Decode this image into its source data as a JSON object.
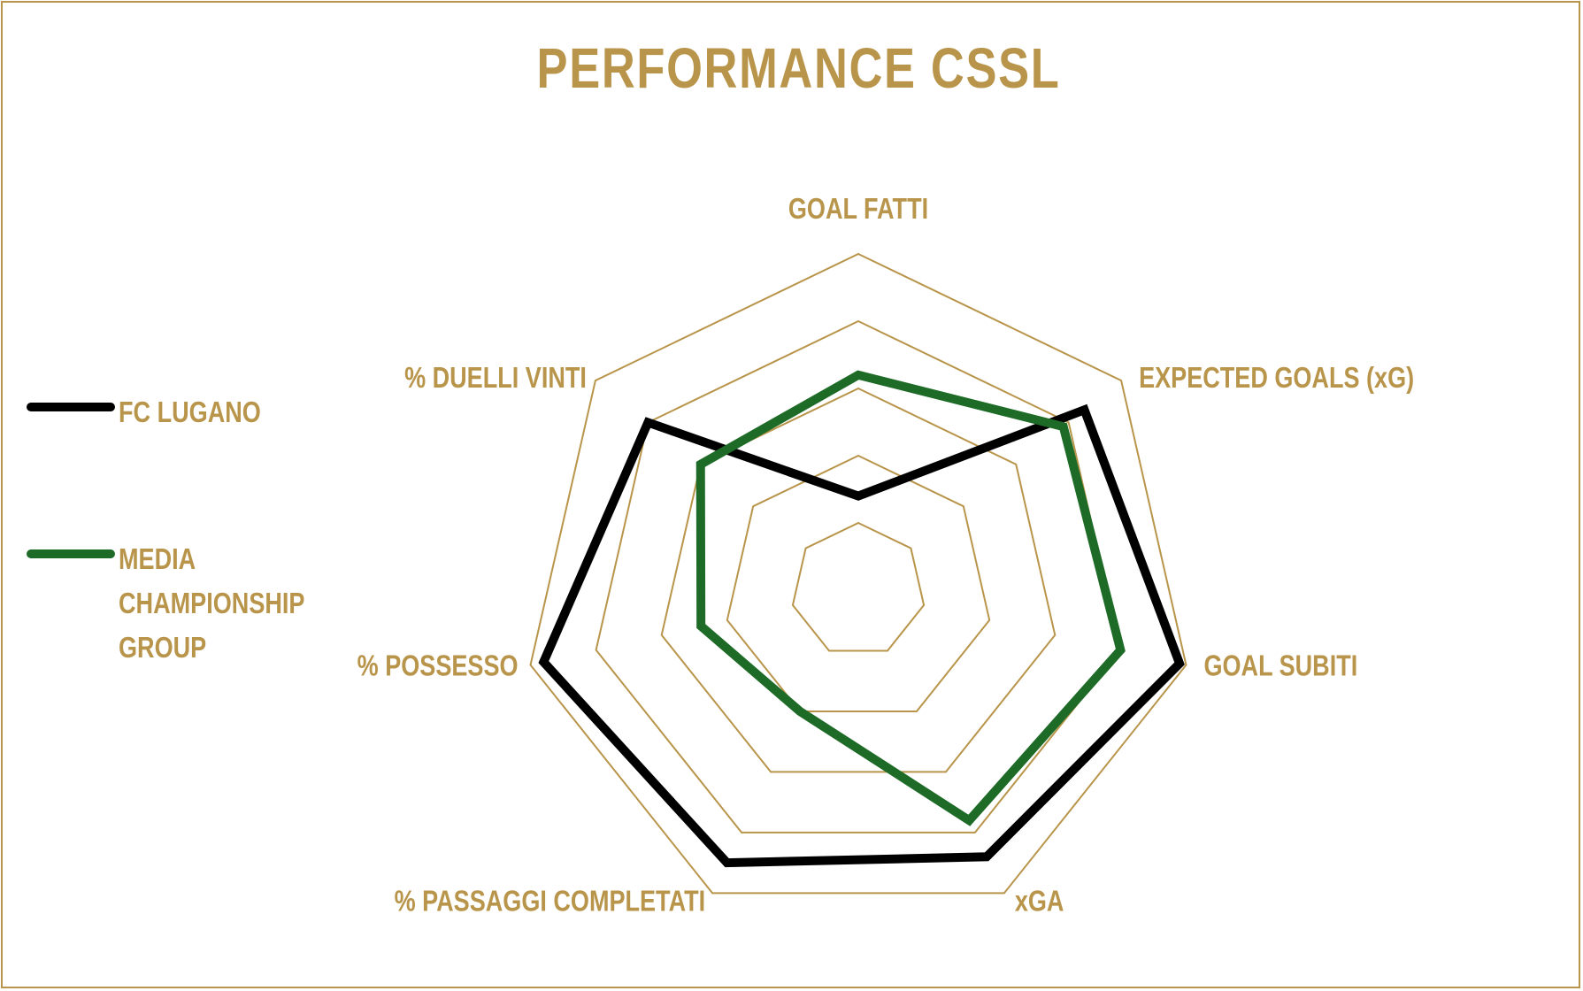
{
  "colors": {
    "accent": "#B8954A",
    "fc_lugano": "#000000",
    "media": "#1E6B27"
  },
  "chart_data": {
    "type": "radar",
    "title": "PERFORMANCE CSSL",
    "axes": [
      "GOAL FATTI",
      "EXPECTED GOALS (xG)",
      "GOAL SUBITI",
      "xGA",
      "% PASSAGGI COMPLETATI",
      "% POSSESSO",
      "% DUELLI VINTI"
    ],
    "rlim": [
      0,
      5
    ],
    "grid_levels": 5,
    "series": [
      {
        "name": "FC LUGANO",
        "color": "#000000",
        "values": [
          1.4,
          4.3,
          4.9,
          4.4,
          4.5,
          4.8,
          4.0
        ]
      },
      {
        "name": "MEDIA CHAMPIONSHIP GROUP",
        "color": "#1E6B27",
        "values": [
          3.2,
          3.9,
          4.0,
          3.8,
          2.0,
          2.4,
          3.0
        ]
      }
    ]
  },
  "legend": [
    {
      "label": "FC LUGANO"
    },
    {
      "label": "MEDIA CHAMPIONSHIP GROUP"
    }
  ]
}
